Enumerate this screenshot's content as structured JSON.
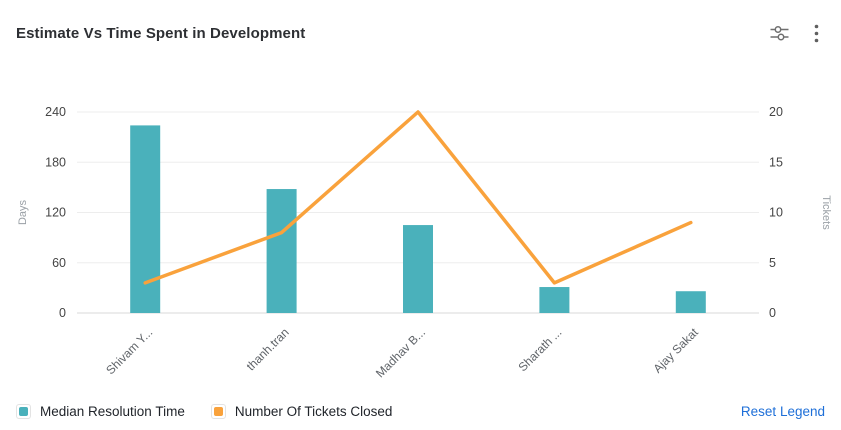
{
  "header": {
    "title": "Estimate Vs Time Spent in Development",
    "icons": [
      {
        "name": "filter-sliders-icon"
      },
      {
        "name": "kebab-menu-icon"
      }
    ]
  },
  "legend": {
    "items": [
      {
        "label": "Median Resolution Time",
        "color": "#4ab1bb"
      },
      {
        "label": "Number Of Tickets Closed",
        "color": "#f9a23c"
      }
    ],
    "reset_label": "Reset Legend",
    "reset_color": "#1e6fd8"
  },
  "chart_data": {
    "type": "combo",
    "categories": [
      "Shivam Y...",
      "thanh.tran",
      "Madhav B...",
      "Sharath ...",
      "Ajay Sakat"
    ],
    "series": [
      {
        "name": "Median Resolution Time",
        "type": "bar",
        "yaxis": "left",
        "color": "#4ab1bb",
        "values": [
          224,
          148,
          105,
          31,
          26
        ]
      },
      {
        "name": "Number Of Tickets Closed",
        "type": "line",
        "yaxis": "right",
        "color": "#f9a23c",
        "values": [
          3,
          8,
          20,
          3,
          9
        ]
      }
    ],
    "left_axis": {
      "label": "Days",
      "ticks": [
        0,
        60,
        120,
        180,
        240
      ],
      "max": 240
    },
    "right_axis": {
      "label": "Tickets",
      "ticks": [
        0,
        5,
        10,
        15,
        20
      ],
      "max": 20
    },
    "grid": true,
    "legend_position": "bottom-left",
    "x_label_rotation": -45
  }
}
